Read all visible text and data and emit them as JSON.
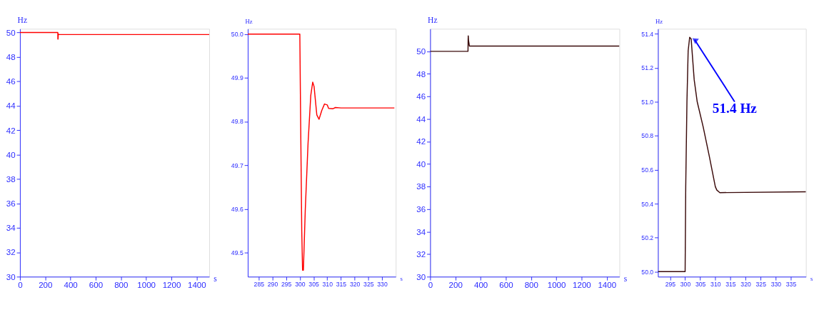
{
  "chart_data": [
    {
      "type": "line",
      "xlabel": "s",
      "ylabel": "Hz",
      "xlim": [
        0,
        1500
      ],
      "ylim": [
        30,
        50.3
      ],
      "xticks": [
        0,
        200,
        400,
        600,
        800,
        1000,
        1200,
        1400
      ],
      "yticks": [
        30,
        32,
        34,
        36,
        38,
        40,
        42,
        44,
        46,
        48,
        50
      ],
      "series": [
        {
          "color": "#ff0000",
          "x": [
            0,
            300,
            300.5,
            302,
            304,
            306,
            1500
          ],
          "values": [
            50,
            50,
            49.46,
            49.46,
            49.89,
            49.83,
            49.83
          ]
        }
      ]
    },
    {
      "type": "line",
      "xlabel": "s",
      "ylabel": "Hz",
      "xlim": [
        281,
        335
      ],
      "ylim": [
        49.445,
        50.012
      ],
      "xticks": [
        285,
        290,
        295,
        300,
        305,
        310,
        315,
        320,
        325,
        330
      ],
      "yticks": [
        {
          "value": 49.5,
          "label": "49.5"
        },
        {
          "value": 49.6,
          "label": "49.6"
        },
        {
          "value": 49.7,
          "label": "49.7"
        },
        {
          "value": 49.8,
          "label": "49.8"
        },
        {
          "value": 49.9,
          "label": "49.9"
        },
        {
          "value": 50,
          "label": "50.0"
        }
      ],
      "series": [
        {
          "color": "#ff0000",
          "x": [
            281,
            300,
            300.3,
            300.7,
            301,
            301.3,
            302,
            303,
            304,
            304.7,
            305.2,
            306.2,
            307,
            308,
            309,
            310,
            310.5,
            312,
            313,
            315,
            334.5
          ],
          "values": [
            50,
            50,
            49.8,
            49.55,
            49.46,
            49.46,
            49.6,
            49.75,
            49.86,
            49.89,
            49.88,
            49.815,
            49.805,
            49.825,
            49.84,
            49.838,
            49.83,
            49.829,
            49.832,
            49.831,
            49.831
          ]
        }
      ]
    },
    {
      "type": "line",
      "xlabel": "s",
      "ylabel": "Hz",
      "xlim": [
        0,
        1500
      ],
      "ylim": [
        30,
        52
      ],
      "xticks": [
        0,
        200,
        400,
        600,
        800,
        1000,
        1200,
        1400
      ],
      "yticks": [
        30,
        32,
        34,
        36,
        38,
        40,
        42,
        44,
        46,
        48,
        50
      ],
      "series": [
        {
          "color": "#3a0a0a",
          "x": [
            0,
            300,
            301,
            302,
            304,
            311,
            1500
          ],
          "values": [
            50,
            50,
            51.0,
            51.38,
            51.0,
            50.47,
            50.47
          ]
        }
      ]
    },
    {
      "type": "line",
      "xlabel": "s",
      "ylabel": "Hz",
      "xlim": [
        291,
        340
      ],
      "ylim": [
        49.97,
        51.43
      ],
      "xticks": [
        295,
        300,
        305,
        310,
        315,
        320,
        325,
        330,
        335
      ],
      "yticks": [
        {
          "value": 50,
          "label": "50.0"
        },
        {
          "value": 50.2,
          "label": "50.2"
        },
        {
          "value": 50.4,
          "label": "50.4"
        },
        {
          "value": 50.6,
          "label": "50.6"
        },
        {
          "value": 50.8,
          "label": "50.8"
        },
        {
          "value": 51,
          "label": "51.0"
        },
        {
          "value": 51.2,
          "label": "51.2"
        },
        {
          "value": 51.4,
          "label": "51.4"
        }
      ],
      "annotations": [
        {
          "text": "51.4 Hz",
          "x": 301.7,
          "y": 51.38
        }
      ],
      "series": [
        {
          "color": "#3a0a0a",
          "x": [
            291,
            300,
            300.2,
            300.6,
            301,
            301.5,
            302,
            302.5,
            303,
            304,
            306,
            308,
            310,
            310.5,
            311.5,
            340
          ],
          "values": [
            50,
            50,
            50.5,
            51.0,
            51.3,
            51.38,
            51.37,
            51.25,
            51.13,
            51.0,
            50.85,
            50.68,
            50.5,
            50.48,
            50.465,
            50.47
          ]
        }
      ]
    }
  ]
}
